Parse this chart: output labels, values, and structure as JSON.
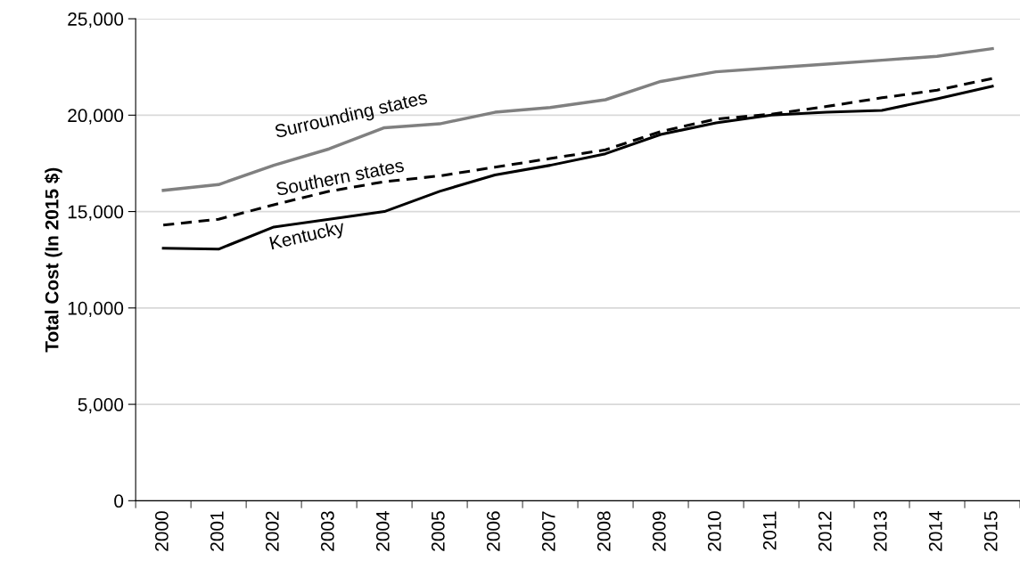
{
  "chart_data": {
    "type": "line",
    "ylabel": "Total Cost (In 2015 $)",
    "categories": [
      "2000",
      "2001",
      "2002",
      "2003",
      "2004",
      "2005",
      "2006",
      "2007",
      "2008",
      "2009",
      "2010",
      "2011",
      "2012",
      "2013",
      "2014",
      "2015"
    ],
    "series": [
      {
        "name": "Surrounding states",
        "color": "#808080",
        "line_style": "solid",
        "values": [
          16100,
          16400,
          17400,
          18250,
          19350,
          19550,
          20150,
          20400,
          20800,
          21750,
          22250,
          22450,
          22650,
          22850,
          23050,
          23450
        ]
      },
      {
        "name": "Southern states",
        "color": "#000000",
        "line_style": "dashed",
        "values": [
          14300,
          14600,
          15350,
          16050,
          16550,
          16850,
          17300,
          17750,
          18200,
          19150,
          19800,
          20050,
          20450,
          20900,
          21300,
          21900
        ]
      },
      {
        "name": "Kentucky",
        "color": "#000000",
        "line_style": "solid",
        "values": [
          13100,
          13050,
          14200,
          14600,
          15000,
          16050,
          16900,
          17400,
          18000,
          19000,
          19600,
          20000,
          20150,
          20250,
          20850,
          21500
        ]
      }
    ],
    "ylim": [
      0,
      25000
    ],
    "yticks": [
      {
        "value": 0,
        "label": "0"
      },
      {
        "value": 5000,
        "label": "5,000"
      },
      {
        "value": 10000,
        "label": "10,000"
      },
      {
        "value": 15000,
        "label": "15,000"
      },
      {
        "value": 20000,
        "label": "20,000"
      },
      {
        "value": 25000,
        "label": "25,000"
      }
    ],
    "grid": "y",
    "marker": "none"
  }
}
